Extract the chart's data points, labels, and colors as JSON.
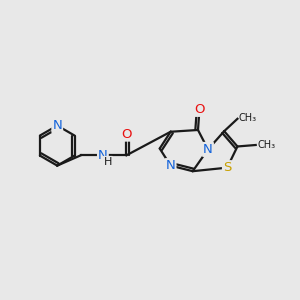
{
  "background_color": "#e8e8e8",
  "bond_color": "#1a1a1a",
  "line_width": 1.6,
  "atom_colors": {
    "N": "#1464db",
    "O": "#e81010",
    "S": "#c8a000",
    "C": "#1a1a1a",
    "H": "#1a1a1a"
  },
  "font_size": 9.5,
  "fig_width": 3.0,
  "fig_height": 3.0,
  "dpi": 100,
  "xlim": [
    0,
    10
  ],
  "ylim": [
    0,
    10
  ]
}
